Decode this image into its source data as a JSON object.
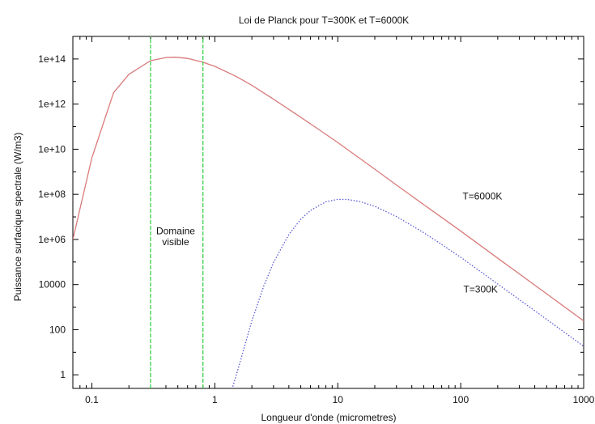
{
  "chart_data": {
    "type": "line",
    "title": "Loi de Planck pour T=300K et T=6000K",
    "xlabel": "Longueur d'onde (micrometres)",
    "ylabel": "Puissance surfacique spectrale (W/m3)",
    "x_scale": "log",
    "y_scale": "log",
    "xlim": [
      0.07,
      1000
    ],
    "ylim": [
      0.25,
      1000000000000000.0
    ],
    "grid": false,
    "x_ticks": [
      {
        "value": 0.1,
        "label": "0.1"
      },
      {
        "value": 1,
        "label": "1"
      },
      {
        "value": 10,
        "label": "10"
      },
      {
        "value": 100,
        "label": "100"
      },
      {
        "value": 1000,
        "label": "1000"
      }
    ],
    "y_ticks": [
      {
        "value": 1,
        "label": "1"
      },
      {
        "value": 100,
        "label": "100"
      },
      {
        "value": 10000,
        "label": "10000"
      },
      {
        "value": 1000000,
        "label": "1e+06"
      },
      {
        "value": 100000000,
        "label": "1e+08"
      },
      {
        "value": 10000000000,
        "label": "1e+10"
      },
      {
        "value": 1000000000000,
        "label": "1e+12"
      },
      {
        "value": 100000000000000,
        "label": "1e+14"
      }
    ],
    "series": [
      {
        "name": "T=6000K",
        "color": "#d97a7a",
        "style": "solid",
        "x": [
          0.07,
          0.1,
          0.15,
          0.2,
          0.3,
          0.4,
          0.48,
          0.6,
          0.8,
          1,
          1.5,
          2,
          3,
          5,
          7,
          10,
          20,
          30,
          50,
          70,
          100,
          200,
          500,
          1000
        ],
        "y": [
          1000000.0,
          4200000000.0,
          3200000000000.0,
          21000000000000.0,
          84000000000000.0,
          116000000000000.0,
          120000000000000.0,
          106000000000000.0,
          72000000000000.0,
          47000000000000.0,
          16500000000000.0,
          6800000000000.0,
          1650000000000.0,
          260000000000.0,
          75000000000.0,
          19800000000.0,
          1300000000.0,
          260000000.0,
          35000000.0,
          9500000.0,
          2350000.0,
          148000.0,
          3900.0,
          245.0
        ]
      },
      {
        "name": "T=300K",
        "color": "#5a5ad6",
        "style": "dotted",
        "x": [
          1.4,
          1.6,
          2,
          2.5,
          3,
          4,
          5,
          6,
          8,
          10,
          12,
          15,
          20,
          30,
          50,
          70,
          100,
          200,
          500,
          1000
        ],
        "y": [
          0.3,
          3.5,
          245,
          8600.0,
          95000.0,
          1650000.0,
          7900000.0,
          19300000.0,
          47000000.0,
          60000000.0,
          59000000.0,
          48500000.0,
          29500000.0,
          10400000.0,
          2000000.0,
          600000.0,
          162000.0,
          10600.0,
          287.0,
          18.3
        ]
      },
      {
        "name": "",
        "color": "#39d04a",
        "style": "dashed",
        "x": [
          0.3,
          0.3
        ],
        "y": [
          0.25,
          1000000000000000.0
        ]
      },
      {
        "name": "",
        "color": "#39d04a",
        "style": "dashed",
        "x": [
          0.8,
          0.8
        ],
        "y": [
          0.25,
          1000000000000000.0
        ]
      }
    ],
    "annotations": [
      {
        "id": "domaine",
        "text": "Domaine",
        "x": 0.48,
        "y": 1700000.0
      },
      {
        "id": "visible",
        "text": "visible",
        "x": 0.48,
        "y": 550000.0
      }
    ],
    "series_labels": [
      {
        "id": "t6000",
        "text": "T=6000K",
        "x": 150,
        "y": 60000000.0
      },
      {
        "id": "t300",
        "text": "T=300K",
        "x": 145,
        "y": 4500.0
      }
    ]
  }
}
